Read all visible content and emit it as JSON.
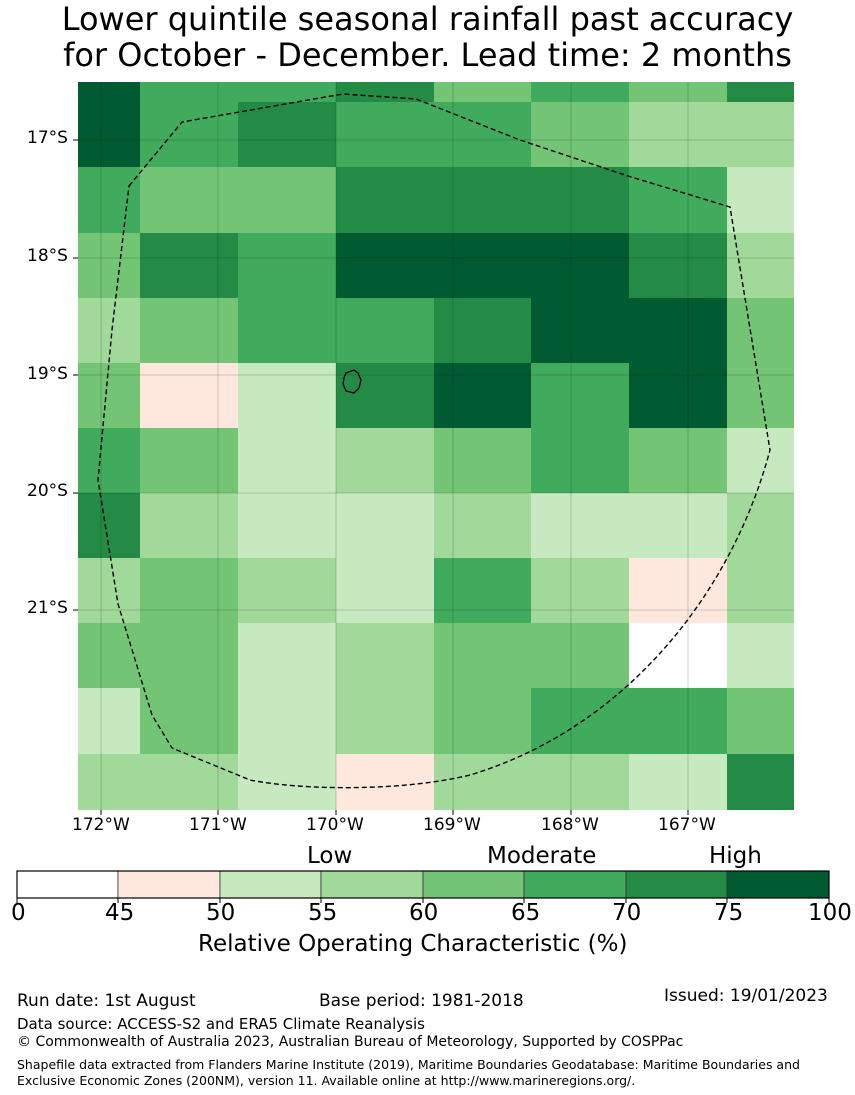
{
  "title": {
    "line1": "Lower quintile seasonal rainfall past accuracy",
    "line2": "for October - December. Lead time: 2 months"
  },
  "map": {
    "lat_labels": [
      "17°S",
      "18°S",
      "19°S",
      "20°S",
      "21°S"
    ],
    "lon_labels": [
      "172°W",
      "171°W",
      "170°W",
      "169°W",
      "168°W",
      "167°W"
    ],
    "legend_level_colors": [
      "#ffffff",
      "#fee8de",
      "#c7e9c0",
      "#a1d99b",
      "#74c476",
      "#41ab5d",
      "#238b45",
      "#005a32"
    ],
    "grid_category_rows": [
      [
        7,
        5,
        5,
        6,
        4,
        5,
        4,
        6
      ],
      [
        7,
        5,
        6,
        5,
        5,
        4,
        3,
        3
      ],
      [
        5,
        4,
        4,
        6,
        6,
        6,
        5,
        2
      ],
      [
        4,
        6,
        5,
        7,
        7,
        7,
        6,
        3
      ],
      [
        3,
        4,
        5,
        5,
        6,
        7,
        7,
        4
      ],
      [
        4,
        1,
        2,
        6,
        7,
        5,
        7,
        4
      ],
      [
        5,
        4,
        2,
        3,
        4,
        5,
        4,
        2
      ],
      [
        6,
        3,
        2,
        2,
        3,
        2,
        2,
        3
      ],
      [
        3,
        4,
        3,
        2,
        5,
        3,
        1,
        3
      ],
      [
        4,
        4,
        2,
        3,
        4,
        4,
        0,
        2
      ],
      [
        2,
        4,
        2,
        3,
        4,
        5,
        5,
        4
      ],
      [
        3,
        3,
        2,
        1,
        3,
        3,
        2,
        6
      ]
    ]
  },
  "colorbar": {
    "category_labels": [
      "Low",
      "Moderate",
      "High"
    ],
    "ticks": [
      "0",
      "45",
      "50",
      "55",
      "60",
      "65",
      "70",
      "75",
      "100"
    ],
    "label": "Relative Operating Characteristic (%)"
  },
  "footer": {
    "run_date": "Run date: 1st August",
    "base_period": "Base period: 1981-2018",
    "issued": "Issued: 19/01/2023",
    "data_source": "Data source: ACCESS-S2 and ERA5 Climate Reanalysis",
    "copyright": "© Commonwealth of Australia 2023, Australian Bureau of Meteorology, Supported by COSPPac",
    "shapefile_note": "Shapefile data extracted from Flanders Marine Institute (2019), Maritime Boundaries Geodatabase: Maritime Boundaries and Exclusive Economic Zones (200NM), version 11. Available online at http://www.marineregions.org/."
  }
}
